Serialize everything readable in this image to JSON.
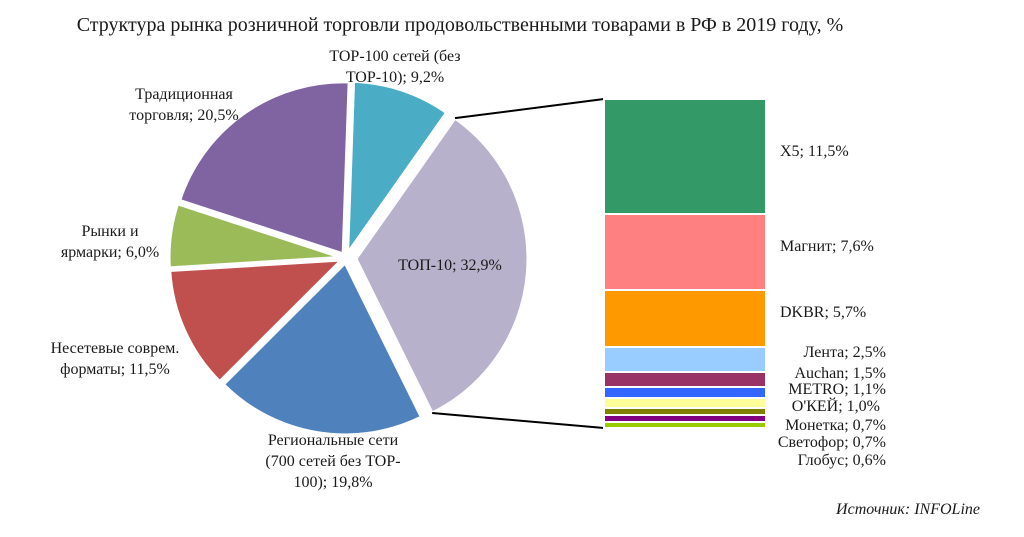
{
  "chart_data": {
    "type": "bar-of-pie",
    "title": "Структура рынка розничной торговли продовольственными товарами в РФ в 2019 году, %",
    "source": "Источник: INFOLine",
    "pie": [
      {
        "id": "top100",
        "lines": [
          "TOP-100 сетей (без",
          "TOP-10); 9,2%"
        ],
        "value": 9.2,
        "color": "#4BACC6"
      },
      {
        "id": "top10",
        "lines": [
          "ТОП-10; 32,9%"
        ],
        "value": 32.9,
        "color": "#B7B1CB"
      },
      {
        "id": "regional",
        "lines": [
          "Региональные сети",
          "(700 сетей без TOP-",
          "100); 19,8%"
        ],
        "value": 19.8,
        "color": "#4F81BD"
      },
      {
        "id": "nonchain",
        "lines": [
          "Несетевые соврем.",
          "форматы; 11,5%"
        ],
        "value": 11.5,
        "color": "#C0504D"
      },
      {
        "id": "markets",
        "lines": [
          "Рынки и",
          "ярмарки; 6,0%"
        ],
        "value": 6.0,
        "color": "#9BBB59"
      },
      {
        "id": "traditional",
        "lines": [
          "Традиционная",
          "торговля; 20,5%"
        ],
        "value": 20.5,
        "color": "#8064A2"
      }
    ],
    "breakdown_of": "top10",
    "bar": [
      {
        "label": "X5; 11,5%",
        "value": 11.5,
        "color": "#339966"
      },
      {
        "label": "Магнит; 7,6%",
        "value": 7.6,
        "color": "#FF8080"
      },
      {
        "label": "DKBR; 5,7%",
        "value": 5.7,
        "color": "#FF9900"
      },
      {
        "label": "Лента; 2,5%",
        "value": 2.5,
        "color": "#99CCFF"
      },
      {
        "label": "Auchan; 1,5%",
        "value": 1.5,
        "color": "#993366"
      },
      {
        "label": "METRO; 1,1%",
        "value": 1.1,
        "color": "#3366FF"
      },
      {
        "label": "O'КЕЙ; 1,0%",
        "value": 1.0,
        "color": "#FFFF99"
      },
      {
        "label": "Монетка; 0,7%",
        "value": 0.7,
        "color": "#808000"
      },
      {
        "label": "Светофор; 0,7%",
        "value": 0.7,
        "color": "#800080"
      },
      {
        "label": "Глобус; 0,6%",
        "value": 0.6,
        "color": "#99CC00"
      }
    ]
  }
}
